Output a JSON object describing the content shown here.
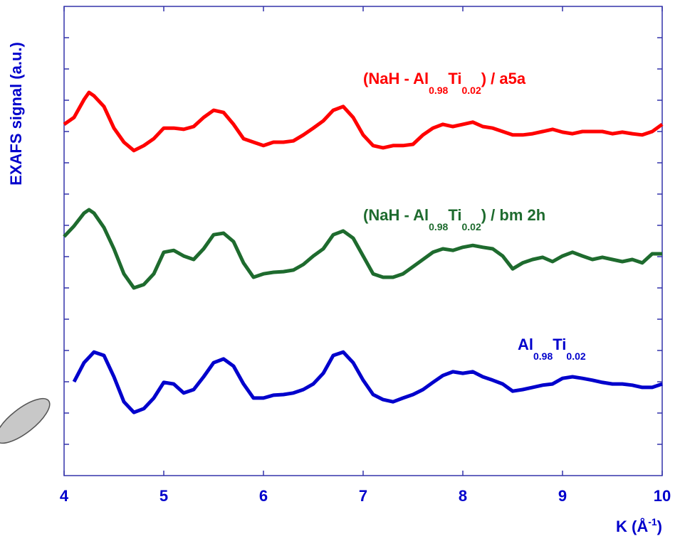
{
  "chart_data": {
    "type": "line",
    "y_label": "EXAFS signal (a.u.)",
    "x_label_parts": [
      "K (Å",
      "-1",
      ")"
    ],
    "xlim": [
      4,
      10
    ],
    "xticks": [
      4,
      5,
      6,
      7,
      8,
      9,
      10
    ],
    "ylim": [
      0,
      15
    ],
    "yticks": [
      1,
      2,
      3,
      4,
      5,
      6,
      7,
      8,
      9,
      10,
      11,
      12,
      13,
      14
    ],
    "show_ytick_labels": false,
    "annotations": [
      {
        "color": "#ff0000",
        "parts": [
          "(NaH - Al",
          "0.98",
          "Ti",
          "0.02",
          ") / a5a"
        ]
      },
      {
        "color": "#1e6b2e",
        "parts": [
          "(NaH - Al",
          "0.98",
          "Ti",
          "0.02",
          ") / bm 2h"
        ]
      },
      {
        "color": "#0000cc",
        "parts": [
          "Al",
          "0.98",
          "Ti",
          "0.02"
        ]
      }
    ],
    "series": [
      {
        "color": "#ff0000",
        "x": [
          4.0,
          4.1,
          4.2,
          4.25,
          4.3,
          4.4,
          4.5,
          4.6,
          4.7,
          4.8,
          4.9,
          5.0,
          5.1,
          5.2,
          5.3,
          5.4,
          5.5,
          5.6,
          5.7,
          5.8,
          5.9,
          6.0,
          6.1,
          6.2,
          6.3,
          6.4,
          6.5,
          6.6,
          6.7,
          6.8,
          6.9,
          7.0,
          7.1,
          7.2,
          7.3,
          7.4,
          7.5,
          7.6,
          7.7,
          7.8,
          7.9,
          8.0,
          8.1,
          8.2,
          8.3,
          8.4,
          8.5,
          8.6,
          8.7,
          8.8,
          8.9,
          9.0,
          9.1,
          9.2,
          9.3,
          9.4,
          9.5,
          9.6,
          9.7,
          9.8,
          9.9,
          10.0
        ],
        "values": [
          11.23,
          11.45,
          12.02,
          12.25,
          12.14,
          11.8,
          11.11,
          10.66,
          10.39,
          10.55,
          10.77,
          11.11,
          11.11,
          11.07,
          11.16,
          11.45,
          11.68,
          11.61,
          11.23,
          10.77,
          10.66,
          10.55,
          10.66,
          10.66,
          10.7,
          10.89,
          11.11,
          11.34,
          11.68,
          11.8,
          11.45,
          10.89,
          10.55,
          10.48,
          10.55,
          10.55,
          10.59,
          10.89,
          11.11,
          11.23,
          11.16,
          11.23,
          11.3,
          11.16,
          11.11,
          11.0,
          10.89,
          10.89,
          10.93,
          11.0,
          11.07,
          10.98,
          10.93,
          11.0,
          11.0,
          11.0,
          10.93,
          10.98,
          10.93,
          10.89,
          11.0,
          11.23
        ]
      },
      {
        "color": "#1e6b2e",
        "x": [
          4.0,
          4.1,
          4.2,
          4.25,
          4.3,
          4.4,
          4.5,
          4.6,
          4.7,
          4.8,
          4.9,
          5.0,
          5.1,
          5.2,
          5.3,
          5.4,
          5.5,
          5.6,
          5.7,
          5.8,
          5.9,
          6.0,
          6.1,
          6.2,
          6.3,
          6.4,
          6.5,
          6.6,
          6.7,
          6.8,
          6.9,
          7.0,
          7.1,
          7.2,
          7.3,
          7.4,
          7.5,
          7.6,
          7.7,
          7.8,
          7.9,
          8.0,
          8.1,
          8.2,
          8.3,
          8.4,
          8.5,
          8.6,
          8.7,
          8.8,
          8.9,
          9.0,
          9.1,
          9.2,
          9.3,
          9.4,
          9.5,
          9.6,
          9.7,
          9.8,
          9.9,
          10.0
        ],
        "values": [
          7.64,
          7.98,
          8.39,
          8.5,
          8.39,
          7.93,
          7.25,
          6.45,
          6.0,
          6.11,
          6.45,
          7.14,
          7.2,
          7.02,
          6.91,
          7.25,
          7.7,
          7.75,
          7.48,
          6.8,
          6.34,
          6.45,
          6.5,
          6.52,
          6.57,
          6.75,
          7.02,
          7.25,
          7.7,
          7.82,
          7.59,
          7.02,
          6.45,
          6.34,
          6.34,
          6.45,
          6.68,
          6.91,
          7.14,
          7.25,
          7.2,
          7.3,
          7.36,
          7.3,
          7.25,
          7.02,
          6.61,
          6.8,
          6.91,
          6.98,
          6.84,
          7.02,
          7.14,
          7.02,
          6.91,
          6.98,
          6.91,
          6.84,
          6.91,
          6.8,
          7.09,
          7.09
        ]
      },
      {
        "color": "#0000cc",
        "x": [
          4.1,
          4.2,
          4.3,
          4.4,
          4.5,
          4.6,
          4.7,
          4.8,
          4.9,
          5.0,
          5.1,
          5.2,
          5.3,
          5.4,
          5.5,
          5.6,
          5.7,
          5.8,
          5.9,
          6.0,
          6.1,
          6.2,
          6.3,
          6.4,
          6.5,
          6.6,
          6.7,
          6.8,
          6.9,
          7.0,
          7.1,
          7.2,
          7.3,
          7.4,
          7.5,
          7.6,
          7.7,
          7.8,
          7.9,
          8.0,
          8.1,
          8.2,
          8.3,
          8.4,
          8.5,
          8.6,
          8.7,
          8.8,
          8.9,
          9.0,
          9.1,
          9.2,
          9.3,
          9.4,
          9.5,
          9.6,
          9.7,
          9.8,
          9.9,
          10.0
        ],
        "values": [
          3.0,
          3.61,
          3.95,
          3.84,
          3.16,
          2.36,
          2.02,
          2.14,
          2.48,
          2.98,
          2.93,
          2.64,
          2.75,
          3.16,
          3.61,
          3.73,
          3.5,
          2.93,
          2.48,
          2.48,
          2.57,
          2.59,
          2.64,
          2.75,
          2.93,
          3.27,
          3.84,
          3.95,
          3.61,
          3.05,
          2.59,
          2.43,
          2.36,
          2.48,
          2.59,
          2.75,
          2.98,
          3.2,
          3.32,
          3.27,
          3.32,
          3.16,
          3.05,
          2.93,
          2.7,
          2.75,
          2.82,
          2.89,
          2.93,
          3.11,
          3.16,
          3.11,
          3.05,
          2.98,
          2.93,
          2.93,
          2.89,
          2.82,
          2.82,
          2.93
        ]
      }
    ]
  }
}
